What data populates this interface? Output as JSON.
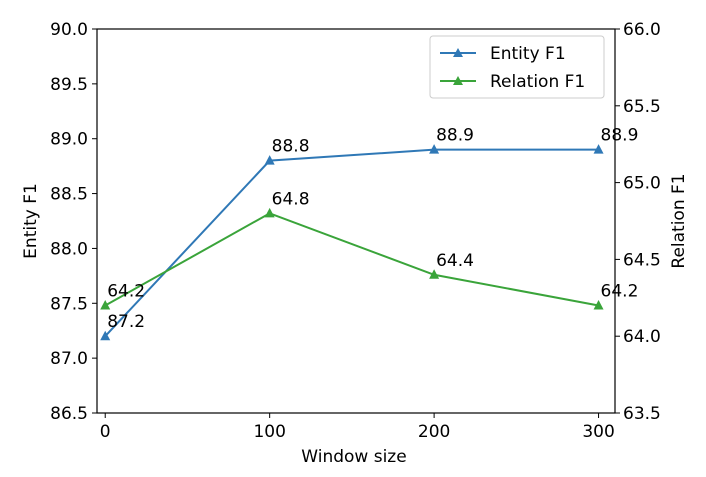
{
  "chart_data": {
    "type": "line",
    "x": [
      0,
      100,
      200,
      300
    ],
    "xlabel": "Window size",
    "xlim": [
      -5,
      310
    ],
    "xticks": [
      "0",
      "100",
      "200",
      "300"
    ],
    "left_axis": {
      "label": "Entity F1",
      "ylim": [
        86.5,
        90.0
      ],
      "ticks": [
        "86.5",
        "87.0",
        "87.5",
        "88.0",
        "88.5",
        "89.0",
        "89.5",
        "90.0"
      ]
    },
    "right_axis": {
      "label": "Relation F1",
      "ylim": [
        63.5,
        66.0
      ],
      "ticks": [
        "63.5",
        "64.0",
        "64.5",
        "65.0",
        "65.5",
        "66.0"
      ]
    },
    "series": [
      {
        "name": "Entity F1",
        "axis": "left",
        "color": "#2f78b6",
        "marker": "triangle-up",
        "values": [
          87.2,
          88.8,
          88.9,
          88.9
        ],
        "labels": [
          "87.2",
          "88.8",
          "88.9",
          "88.9"
        ]
      },
      {
        "name": "Relation F1",
        "axis": "right",
        "color": "#3aa43a",
        "marker": "triangle-up",
        "values": [
          64.2,
          64.8,
          64.4,
          64.2
        ],
        "labels": [
          "64.2",
          "64.8",
          "64.4",
          "64.2"
        ]
      }
    ],
    "legend": "top-right",
    "grid": false
  }
}
